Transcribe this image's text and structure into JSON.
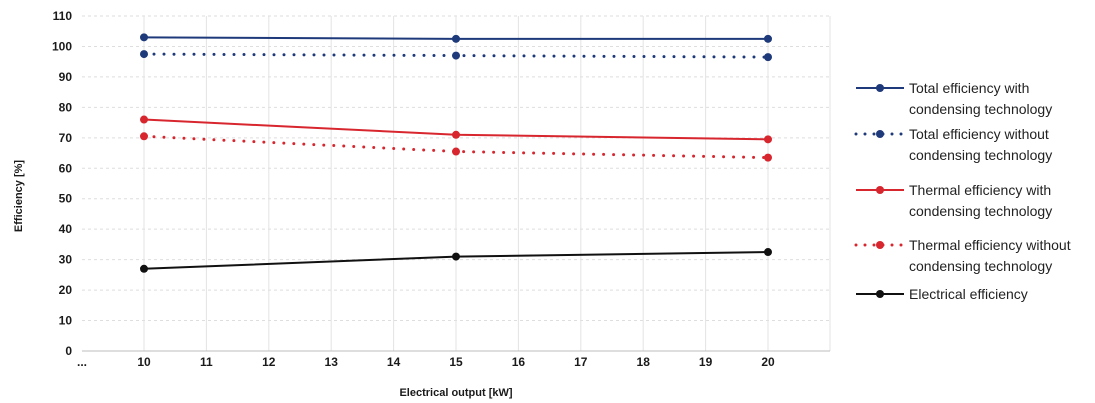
{
  "chart_data": {
    "type": "line",
    "xlabel": "Electrical output [kW]",
    "ylabel": "Efficiency [%]",
    "x_ticks": [
      "...",
      "10",
      "11",
      "12",
      "13",
      "14",
      "15",
      "16",
      "17",
      "18",
      "19",
      "20"
    ],
    "y_ticks": [
      "0",
      "10",
      "20",
      "30",
      "40",
      "50",
      "60",
      "70",
      "80",
      "90",
      "100",
      "110"
    ],
    "xlim": [
      9,
      21
    ],
    "ylim": [
      0,
      110
    ],
    "grid": true,
    "legend_position": "right",
    "x": [
      10,
      15,
      20
    ],
    "series": [
      {
        "name": "Total efficiency with condensing technology",
        "legend_lines": [
          "Total efficiency with",
          "condensing technology"
        ],
        "values": [
          103,
          102.5,
          102.5
        ],
        "color": "#1f3a7a",
        "style": "solid"
      },
      {
        "name": "Total efficiency without condensing technology",
        "legend_lines": [
          "Total efficiency without",
          "condensing technology"
        ],
        "values": [
          97.5,
          97,
          96.5
        ],
        "color": "#1f3a7a",
        "style": "dotted"
      },
      {
        "name": "Thermal efficiency with condensing technology",
        "legend_lines": [
          "Thermal efficiency with",
          "condensing technology"
        ],
        "values": [
          76,
          71,
          69.5
        ],
        "color": "#d8262e",
        "style": "solid"
      },
      {
        "name": "Thermal efficiency without condensing technology",
        "legend_lines": [
          "Thermal efficiency without",
          "condensing technology"
        ],
        "values": [
          70.5,
          65.5,
          63.5
        ],
        "color": "#d8262e",
        "style": "dotted"
      },
      {
        "name": "Electrical efficiency",
        "legend_lines": [
          "Electrical efficiency"
        ],
        "values": [
          27,
          31,
          32.5
        ],
        "color": "#111111",
        "style": "solid"
      }
    ]
  }
}
